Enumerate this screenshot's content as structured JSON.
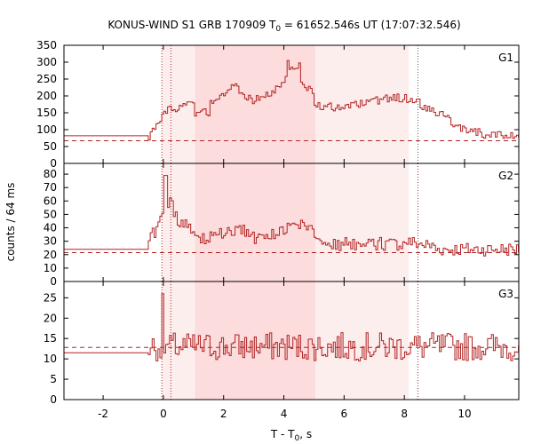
{
  "chart_data": {
    "type": "line",
    "title_pre": "KONUS-WIND S1 GRB 170909 T",
    "title_sub": "0",
    "title_post": " = 61652.546s UT (17:07:32.546)",
    "xlabel_pre": "T - T",
    "xlabel_sub": "0",
    "xlabel_post": ", s",
    "ylabel": "counts / 64 ms",
    "xlim": [
      -3.3,
      11.8
    ],
    "x_ticks": [
      -2,
      0,
      2,
      4,
      6,
      8,
      10
    ],
    "x_tick_labels": [
      "-2",
      "0",
      "2",
      "4",
      "6",
      "8",
      "10"
    ],
    "shaded_intervals": [
      {
        "from": -0.05,
        "to": 1.05,
        "level": "light"
      },
      {
        "from": 1.05,
        "to": 5.05,
        "level": "dark"
      },
      {
        "from": 5.05,
        "to": 8.15,
        "level": "light"
      }
    ],
    "vertical_dotted_lines": [
      -0.05,
      0.25,
      8.45
    ],
    "colors": {
      "line": "#b22222",
      "shade_dark": "#fcdcdc",
      "shade_light": "#fdeeee"
    },
    "panels": [
      {
        "name": "G1",
        "ylim": [
          0,
          350
        ],
        "y_ticks": [
          0,
          50,
          100,
          150,
          200,
          250,
          300,
          350
        ],
        "y_tick_labels": [
          "0",
          "50",
          "100",
          "150",
          "200",
          "250",
          "300",
          "350"
        ],
        "background": 67,
        "pre_level": 82,
        "segments": [
          [
            -0.5,
            0.1,
            80,
            160
          ],
          [
            0.1,
            1.0,
            160,
            175
          ],
          [
            1.0,
            1.5,
            150,
            150
          ],
          [
            1.5,
            2.4,
            180,
            230
          ],
          [
            2.4,
            3.0,
            220,
            180
          ],
          [
            3.0,
            3.5,
            190,
            210
          ],
          [
            3.5,
            4.0,
            200,
            250
          ],
          [
            4.0,
            4.5,
            260,
            295
          ],
          [
            4.5,
            5.0,
            250,
            200
          ],
          [
            5.0,
            6.0,
            175,
            160
          ],
          [
            6.0,
            7.5,
            165,
            195
          ],
          [
            7.5,
            8.5,
            195,
            190
          ],
          [
            8.5,
            9.5,
            175,
            130
          ],
          [
            9.5,
            10.5,
            110,
            90
          ],
          [
            10.5,
            11.8,
            85,
            85
          ]
        ],
        "noise": 12
      },
      {
        "name": "G2",
        "ylim": [
          0,
          88
        ],
        "y_ticks": [
          0,
          10,
          20,
          30,
          40,
          50,
          60,
          70,
          80
        ],
        "y_tick_labels": [
          "0",
          "10",
          "20",
          "30",
          "40",
          "50",
          "60",
          "70",
          "80"
        ],
        "background": 21.5,
        "pre_level": 24,
        "segments": [
          [
            -0.5,
            0.0,
            30,
            50
          ],
          [
            0.0,
            0.3,
            60,
            60
          ],
          [
            0.3,
            1.0,
            50,
            35
          ],
          [
            1.0,
            2.5,
            30,
            38
          ],
          [
            2.5,
            3.2,
            40,
            30
          ],
          [
            3.2,
            4.5,
            32,
            42
          ],
          [
            4.5,
            5.2,
            45,
            30
          ],
          [
            5.2,
            8.0,
            28,
            28
          ],
          [
            8.0,
            9.0,
            30,
            26
          ],
          [
            9.0,
            11.8,
            24,
            24
          ]
        ],
        "noise": 5
      },
      {
        "name": "G3",
        "ylim": [
          0,
          29
        ],
        "y_ticks": [
          0,
          5,
          10,
          15,
          20,
          25
        ],
        "y_tick_labels": [
          "0",
          "5",
          "10",
          "15",
          "20",
          "25"
        ],
        "background": 12.8,
        "pre_level": 11.5,
        "segments": [
          [
            -0.5,
            11.8,
            13,
            13
          ]
        ],
        "noise": 3.5
      }
    ]
  }
}
